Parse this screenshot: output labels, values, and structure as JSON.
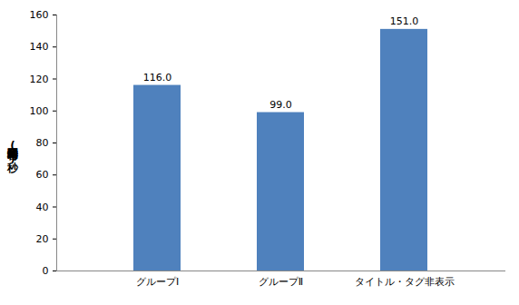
{
  "chart_data": {
    "type": "bar",
    "y_label": "平均回答時間(秒)",
    "categories": [
      "グループⅠ",
      "グループⅡ",
      "タイトル・タグ非表示"
    ],
    "values": [
      116.0,
      99.0,
      151.0
    ],
    "value_labels": [
      "116.0",
      "99.0",
      "151.0"
    ],
    "color": "#4f81bd",
    "ylim": [
      0,
      160
    ],
    "yticks": [
      0,
      20,
      40,
      60,
      80,
      100,
      120,
      140,
      160
    ],
    "grid": false,
    "data_labels": true
  }
}
